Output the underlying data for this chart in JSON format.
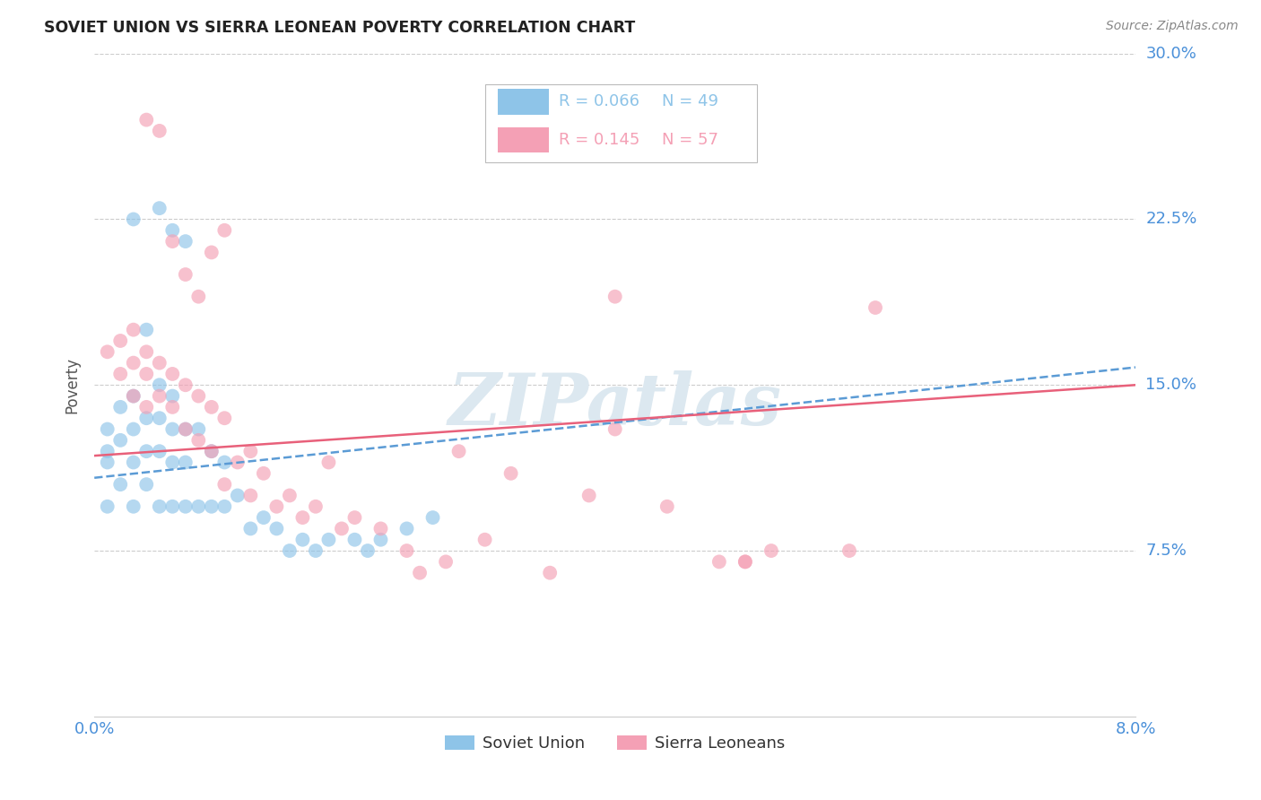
{
  "title": "SOVIET UNION VS SIERRA LEONEAN POVERTY CORRELATION CHART",
  "source": "Source: ZipAtlas.com",
  "ylabel": "Poverty",
  "xmin": 0.0,
  "xmax": 0.08,
  "ymin": 0.0,
  "ymax": 0.3,
  "yticks": [
    0.075,
    0.15,
    0.225,
    0.3
  ],
  "ytick_labels": [
    "7.5%",
    "15.0%",
    "22.5%",
    "30.0%"
  ],
  "legend_entries": [
    {
      "label_r": "R = 0.066",
      "label_n": "N = 49",
      "color": "#8ec4e8"
    },
    {
      "label_r": "R = 0.145",
      "label_n": "N = 57",
      "color": "#f4a0b5"
    }
  ],
  "soviet_color": "#8ec4e8",
  "sierra_color": "#f4a0b5",
  "soviet_line_color": "#5b9bd5",
  "sierra_line_color": "#e8607a",
  "watermark": "ZIPatlas",
  "watermark_color": "#dce8f0",
  "background_color": "#ffffff",
  "grid_color": "#cccccc",
  "soviet_scatter_x": [
    0.001,
    0.001,
    0.001,
    0.001,
    0.002,
    0.002,
    0.002,
    0.003,
    0.003,
    0.003,
    0.003,
    0.004,
    0.004,
    0.004,
    0.005,
    0.005,
    0.005,
    0.005,
    0.006,
    0.006,
    0.006,
    0.006,
    0.007,
    0.007,
    0.007,
    0.008,
    0.008,
    0.009,
    0.009,
    0.01,
    0.01,
    0.011,
    0.012,
    0.013,
    0.014,
    0.015,
    0.016,
    0.017,
    0.018,
    0.02,
    0.021,
    0.022,
    0.024,
    0.026,
    0.003,
    0.005,
    0.006,
    0.007,
    0.004
  ],
  "soviet_scatter_y": [
    0.13,
    0.12,
    0.115,
    0.095,
    0.14,
    0.125,
    0.105,
    0.145,
    0.13,
    0.115,
    0.095,
    0.135,
    0.12,
    0.105,
    0.15,
    0.135,
    0.12,
    0.095,
    0.145,
    0.13,
    0.115,
    0.095,
    0.13,
    0.115,
    0.095,
    0.13,
    0.095,
    0.12,
    0.095,
    0.115,
    0.095,
    0.1,
    0.085,
    0.09,
    0.085,
    0.075,
    0.08,
    0.075,
    0.08,
    0.08,
    0.075,
    0.08,
    0.085,
    0.09,
    0.225,
    0.23,
    0.22,
    0.215,
    0.175
  ],
  "sierra_scatter_x": [
    0.001,
    0.002,
    0.002,
    0.003,
    0.003,
    0.003,
    0.004,
    0.004,
    0.004,
    0.005,
    0.005,
    0.006,
    0.006,
    0.007,
    0.007,
    0.008,
    0.008,
    0.009,
    0.009,
    0.01,
    0.01,
    0.011,
    0.012,
    0.012,
    0.013,
    0.014,
    0.015,
    0.016,
    0.017,
    0.018,
    0.019,
    0.02,
    0.022,
    0.024,
    0.025,
    0.027,
    0.028,
    0.03,
    0.032,
    0.035,
    0.038,
    0.04,
    0.044,
    0.048,
    0.05,
    0.052,
    0.058,
    0.004,
    0.005,
    0.006,
    0.007,
    0.008,
    0.009,
    0.01,
    0.04,
    0.05,
    0.06
  ],
  "sierra_scatter_y": [
    0.165,
    0.17,
    0.155,
    0.175,
    0.16,
    0.145,
    0.165,
    0.155,
    0.14,
    0.16,
    0.145,
    0.155,
    0.14,
    0.15,
    0.13,
    0.145,
    0.125,
    0.14,
    0.12,
    0.135,
    0.105,
    0.115,
    0.12,
    0.1,
    0.11,
    0.095,
    0.1,
    0.09,
    0.095,
    0.115,
    0.085,
    0.09,
    0.085,
    0.075,
    0.065,
    0.07,
    0.12,
    0.08,
    0.11,
    0.065,
    0.1,
    0.13,
    0.095,
    0.07,
    0.07,
    0.075,
    0.075,
    0.27,
    0.265,
    0.215,
    0.2,
    0.19,
    0.21,
    0.22,
    0.19,
    0.07,
    0.185
  ],
  "soviet_line_x": [
    0.0,
    0.08
  ],
  "soviet_line_y": [
    0.108,
    0.158
  ],
  "sierra_line_x": [
    0.0,
    0.08
  ],
  "sierra_line_y": [
    0.118,
    0.15
  ]
}
